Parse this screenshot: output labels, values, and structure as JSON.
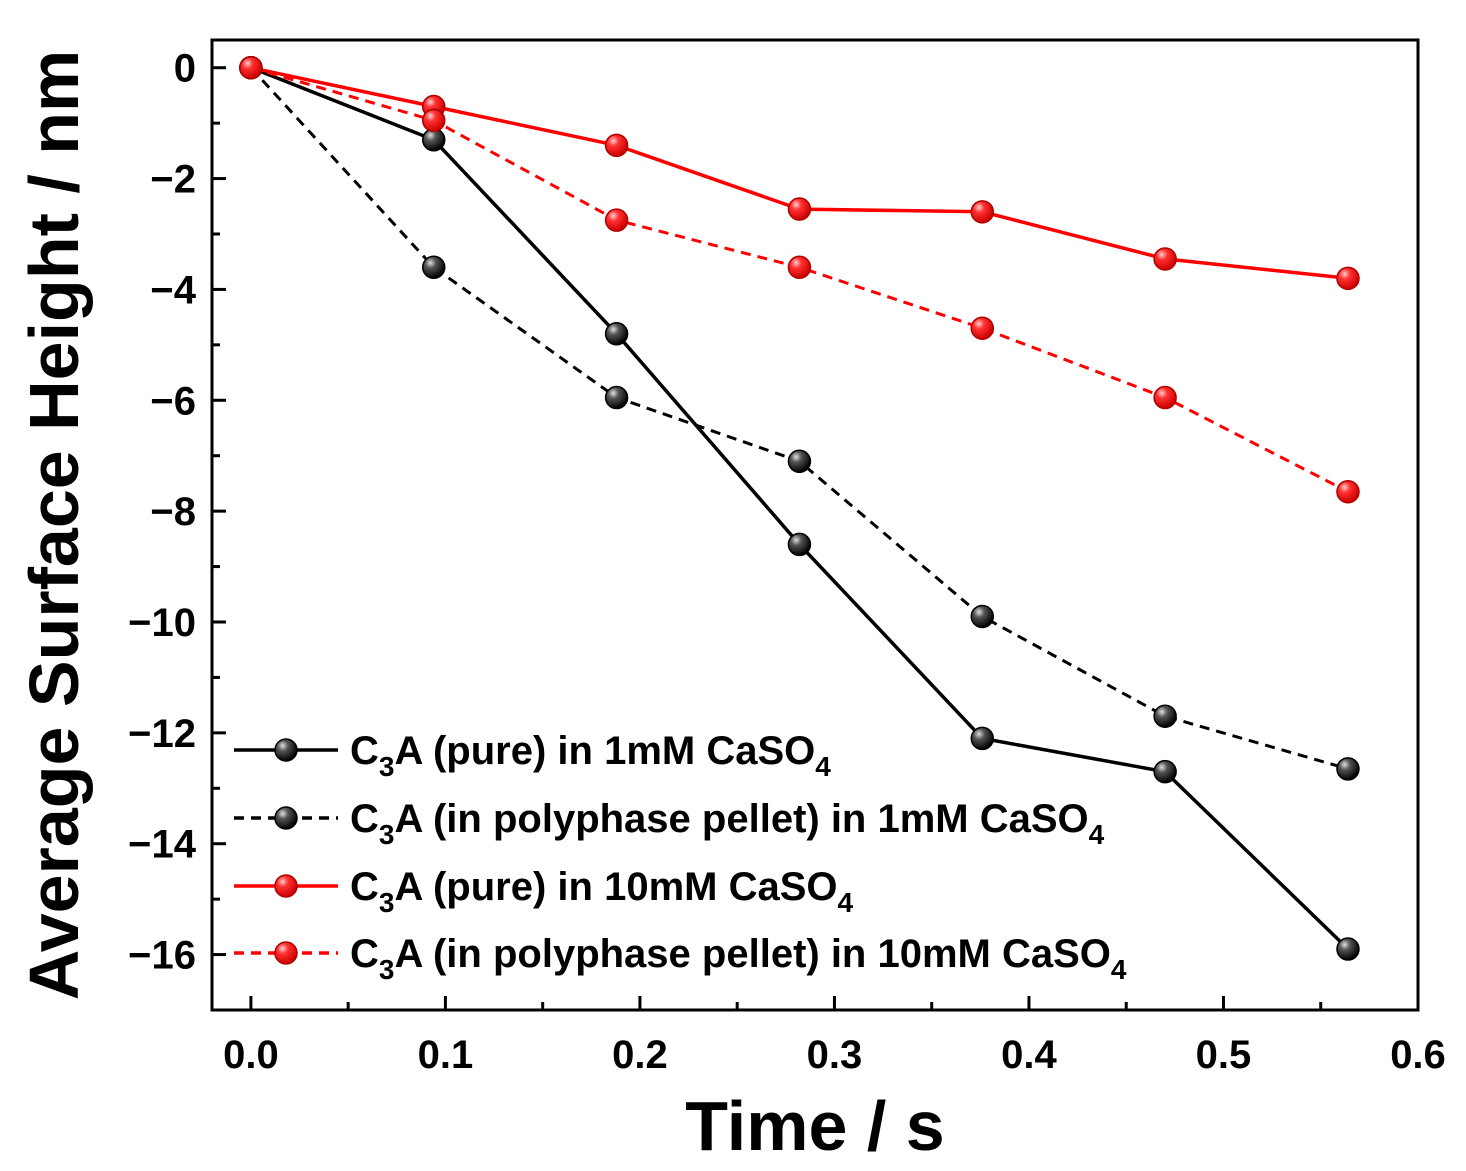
{
  "chart_data": {
    "type": "line",
    "xlabel": "Time / s",
    "ylabel": "Average Surface Height / nm",
    "xlim": [
      -0.02,
      0.6
    ],
    "ylim": [
      -17,
      0.5
    ],
    "xticks": [
      0.0,
      0.1,
      0.2,
      0.3,
      0.4,
      0.5,
      0.6
    ],
    "xtick_labels": [
      "0.0",
      "0.1",
      "0.2",
      "0.3",
      "0.4",
      "0.5",
      "0.6"
    ],
    "yticks": [
      0,
      -2,
      -4,
      -6,
      -8,
      -10,
      -12,
      -14,
      -16
    ],
    "ytick_labels": [
      "0",
      "−2",
      "−4",
      "−6",
      "−8",
      "−10",
      "−12",
      "−14",
      "−16"
    ],
    "grid": false,
    "legend_position": "bottom-left",
    "series": [
      {
        "name": "C3A (pure) in 1mM CaSO4",
        "label_parts": [
          "C",
          "3",
          "A (pure) in 1mM CaSO",
          "4"
        ],
        "color": "#000000",
        "dash": "solid",
        "x": [
          0.0,
          0.094,
          0.188,
          0.282,
          0.376,
          0.47,
          0.564
        ],
        "y": [
          0.0,
          -1.3,
          -4.8,
          -8.6,
          -12.1,
          -12.7,
          -15.9
        ]
      },
      {
        "name": "C3A (in polyphase pellet) in 1mM CaSO4",
        "label_parts": [
          "C",
          "3",
          "A (in polyphase pellet) in 1mM CaSO",
          "4"
        ],
        "color": "#000000",
        "dash": "dashed",
        "x": [
          0.0,
          0.094,
          0.188,
          0.282,
          0.376,
          0.47,
          0.564
        ],
        "y": [
          0.0,
          -3.6,
          -5.95,
          -7.1,
          -9.9,
          -11.7,
          -12.65
        ]
      },
      {
        "name": "C3A (pure) in 10mM CaSO4",
        "label_parts": [
          "C",
          "3",
          "A (pure) in 10mM CaSO",
          "4"
        ],
        "color": "#ff0000",
        "dash": "solid",
        "x": [
          0.0,
          0.094,
          0.188,
          0.282,
          0.376,
          0.47,
          0.564
        ],
        "y": [
          0.0,
          -0.7,
          -1.4,
          -2.55,
          -2.6,
          -3.45,
          -3.8
        ]
      },
      {
        "name": "C3A (in polyphase pellet) in 10mM CaSO4",
        "label_parts": [
          "C",
          "3",
          "A (in polyphase pellet) in 10mM CaSO",
          "4"
        ],
        "color": "#ff0000",
        "dash": "dashed",
        "x": [
          0.0,
          0.094,
          0.188,
          0.282,
          0.376,
          0.47,
          0.564
        ],
        "y": [
          0.0,
          -0.95,
          -2.75,
          -3.6,
          -4.7,
          -5.95,
          -7.65
        ]
      }
    ]
  }
}
